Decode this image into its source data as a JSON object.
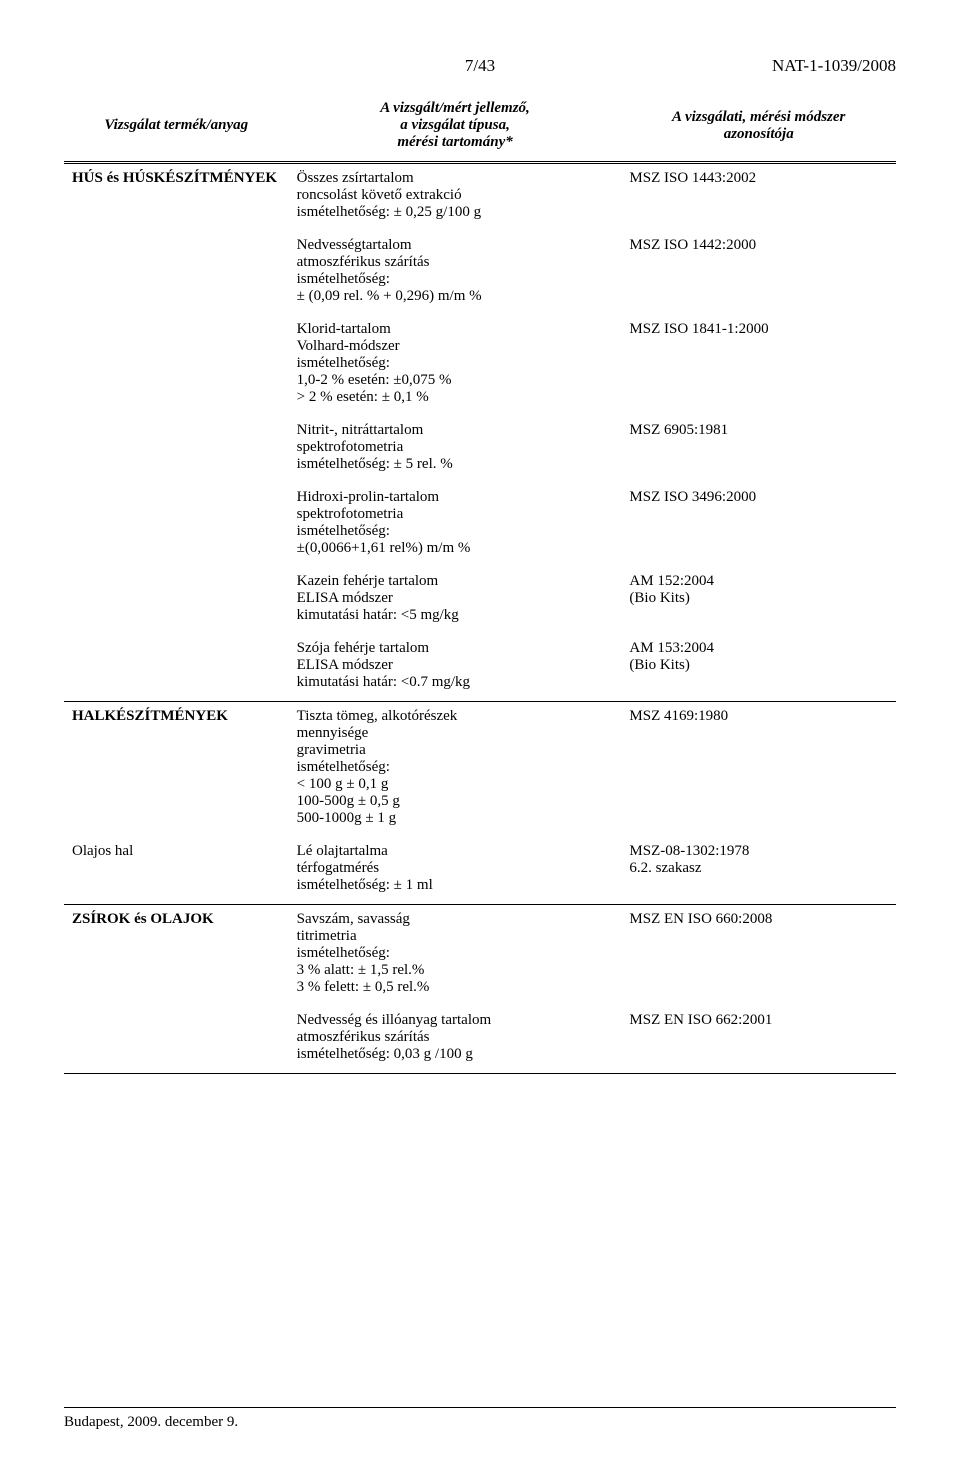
{
  "page_number": "7/43",
  "doc_ref": "NAT-1-1039/2008",
  "columns": {
    "c1": "Vizsgálat termék/anyag",
    "c2_l1": "A vizsgált/mért jellemző,",
    "c2_l2": "a vizsgálat típusa,",
    "c2_l3": "mérési tartomány*",
    "c3_l1": "A vizsgálati, mérési módszer",
    "c3_l2": "azonosítója"
  },
  "sections": [
    {
      "category": "HÚS és HÚSKÉSZÍTMÉNYEK",
      "subcategory": "",
      "rows": [
        {
          "param": "Összes zsírtartalom\nroncsolást követő extrakció\nismételhetőség: ± 0,25 g/100 g",
          "id": "MSZ ISO 1443:2002"
        },
        {
          "param": "Nedvességtartalom\natmoszférikus szárítás\nismételhetőség:\n± (0,09 rel. % + 0,296) m/m %",
          "id": "MSZ ISO 1442:2000"
        },
        {
          "param": "Klorid-tartalom\nVolhard-módszer\nismételhetőség:\n1,0-2 % esetén: ±0,075 %\n> 2 % esetén:    ± 0,1 %",
          "id": "MSZ ISO 1841-1:2000"
        },
        {
          "param": "Nitrit-, nitráttartalom\nspektrofotometria\nismételhetőség: ± 5 rel. %",
          "id": "MSZ 6905:1981"
        },
        {
          "param": "Hidroxi-prolin-tartalom\nspektrofotometria\nismételhetőség:\n±(0,0066+1,61 rel%) m/m %",
          "id": "MSZ ISO 3496:2000"
        },
        {
          "param": "Kazein fehérje tartalom\nELISA módszer\nkimutatási határ: <5 mg/kg",
          "id": "AM 152:2004\n(Bio Kits)"
        },
        {
          "param": "Szója fehérje tartalom\nELISA módszer\nkimutatási határ: <0.7 mg/kg",
          "id": "AM 153:2004\n(Bio Kits)"
        }
      ]
    },
    {
      "category": "HALKÉSZÍTMÉNYEK",
      "subcategory": "",
      "rows": [
        {
          "param": "Tiszta tömeg, alkotórészek\nmennyisége\ngravimetria\nismételhetőség:\n< 100 g      ± 0,1 g\n100-500g   ± 0,5 g\n500-1000g ± 1 g",
          "id": "MSZ 4169:1980"
        }
      ],
      "sub": {
        "label": "Olajos hal",
        "rows": [
          {
            "param": "Lé olajtartalma\ntérfogatmérés\nismételhetőség: ± 1 ml",
            "id": "MSZ-08-1302:1978\n6.2. szakasz"
          }
        ]
      }
    },
    {
      "category": "ZSÍROK és OLAJOK",
      "subcategory": "",
      "rows": [
        {
          "param": "Savszám, savasság\ntitrimetria\nismételhetőség:\n3 % alatt:     ± 1,5 rel.%\n3 % felett:    ± 0,5 rel.%",
          "id": "MSZ EN ISO 660:2008"
        },
        {
          "param": "Nedvesség és illóanyag tartalom\natmoszférikus szárítás\nismételhetőség: 0,03 g /100 g",
          "id": "MSZ EN ISO 662:2001"
        }
      ]
    }
  ],
  "footer": "Budapest, 2009. december 9.",
  "watermark_fill": "#eef0f4"
}
